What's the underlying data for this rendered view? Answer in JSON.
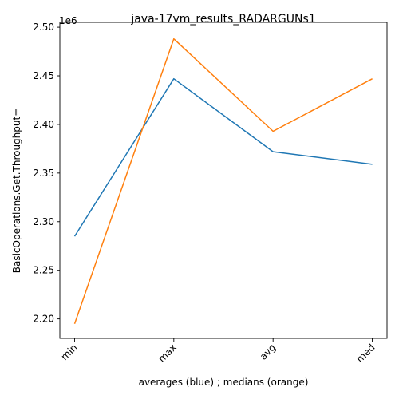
{
  "chart_data": {
    "type": "line",
    "title": "java-17vm_results_RADARGUNs1",
    "xlabel": "averages (blue) ; medians (orange)",
    "ylabel": "BasicOperations.Get.Throughput=",
    "y_offset_label": "1e6",
    "categories": [
      "min",
      "max",
      "avg",
      "med"
    ],
    "ylim": [
      2.18,
      2.505
    ],
    "yticks": [
      2.2,
      2.25,
      2.3,
      2.35,
      2.4,
      2.45,
      2.5
    ],
    "ytick_labels": [
      "2.20",
      "2.25",
      "2.30",
      "2.35",
      "2.40",
      "2.45",
      "2.50"
    ],
    "grid": false,
    "series": [
      {
        "color": "#1f77b4",
        "values": [
          2.285,
          2.447,
          2.372,
          2.359
        ]
      },
      {
        "color": "#ff7f0e",
        "values": [
          2.195,
          2.488,
          2.393,
          2.447
        ]
      }
    ]
  }
}
